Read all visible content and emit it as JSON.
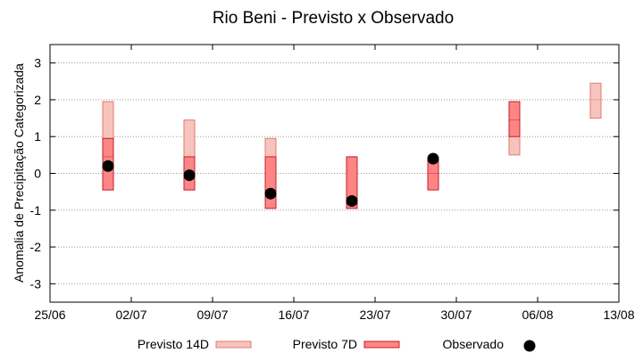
{
  "chart_data": {
    "type": "floating-bar",
    "title": "Rio Beni - Previsto x Observado",
    "xlabel": "",
    "ylabel": "Anomalia de Precipitação Categorizada",
    "ylim": [
      -3.5,
      3.5
    ],
    "xlim": [
      "2021-06-25",
      "2021-08-13"
    ],
    "grid": true,
    "legend_position": "bottom",
    "x_tick_labels": [
      "25/06",
      "02/07",
      "09/07",
      "16/07",
      "23/07",
      "30/07",
      "06/08",
      "13/08"
    ],
    "y_tick_labels": [
      "-3",
      "-2",
      "-1",
      "0",
      "1",
      "2",
      "3"
    ],
    "series": [
      {
        "name": "Previsto 14D",
        "color": "#f7c4bd",
        "edge": "#e07a70",
        "values": [
          {
            "x": "2021-06-30",
            "low": -0.45,
            "mid": 0.95,
            "high": 1.95
          },
          {
            "x": "2021-07-07",
            "low": -0.45,
            "mid": 0.45,
            "high": 1.45
          },
          {
            "x": "2021-07-14",
            "low": -0.95,
            "mid": -0.45,
            "high": 0.95
          },
          {
            "x": "2021-07-21",
            "low": -0.95,
            "mid": -0.85,
            "high": 0.45
          },
          {
            "x": "2021-08-04",
            "low": 0.5,
            "mid": 1.0,
            "high": 1.95
          },
          {
            "x": "2021-08-11",
            "low": 1.5,
            "mid": 2.0,
            "high": 2.45
          }
        ]
      },
      {
        "name": "Previsto 7D",
        "color": "#ff8585",
        "edge": "#c0202a",
        "values": [
          {
            "x": "2021-06-30",
            "low": -0.45,
            "mid": 0.45,
            "high": 0.95
          },
          {
            "x": "2021-07-07",
            "low": -0.45,
            "mid": 0.0,
            "high": 0.45
          },
          {
            "x": "2021-07-14",
            "low": -0.95,
            "mid": -0.45,
            "high": 0.45
          },
          {
            "x": "2021-07-21",
            "low": -0.95,
            "mid": -0.85,
            "high": 0.45
          },
          {
            "x": "2021-07-28",
            "low": -0.45,
            "mid": 0.0,
            "high": 0.35
          },
          {
            "x": "2021-08-04",
            "low": 1.0,
            "mid": 1.45,
            "high": 1.95
          }
        ]
      },
      {
        "name": "Observado",
        "color": "#000000",
        "values": [
          {
            "x": "2021-06-30",
            "y": 0.2
          },
          {
            "x": "2021-07-07",
            "y": -0.05
          },
          {
            "x": "2021-07-14",
            "y": -0.55
          },
          {
            "x": "2021-07-21",
            "y": -0.75
          },
          {
            "x": "2021-07-28",
            "y": 0.4
          }
        ]
      }
    ]
  }
}
